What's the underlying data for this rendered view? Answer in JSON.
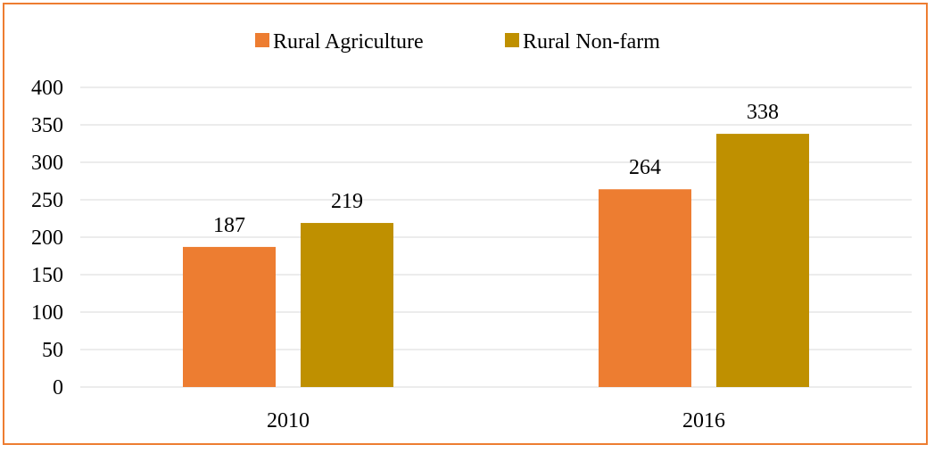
{
  "chart_data": {
    "type": "bar",
    "title": "",
    "xlabel": "",
    "ylabel": "",
    "categories": [
      "2010",
      "2016"
    ],
    "series": [
      {
        "name": "Rural Agriculture",
        "color": "#ED7D31",
        "values": [
          187,
          264
        ]
      },
      {
        "name": "Rural Non-farm",
        "color": "#BF9000",
        "values": [
          219,
          338
        ]
      }
    ],
    "ylim": [
      0,
      400
    ],
    "yticks": [
      "0",
      "50",
      "100",
      "150",
      "200",
      "250",
      "300",
      "350",
      "400"
    ],
    "grid": true,
    "gridline_color": "#D9D9D9",
    "border_color": "#ED7D31",
    "legend_position": "top-center"
  }
}
